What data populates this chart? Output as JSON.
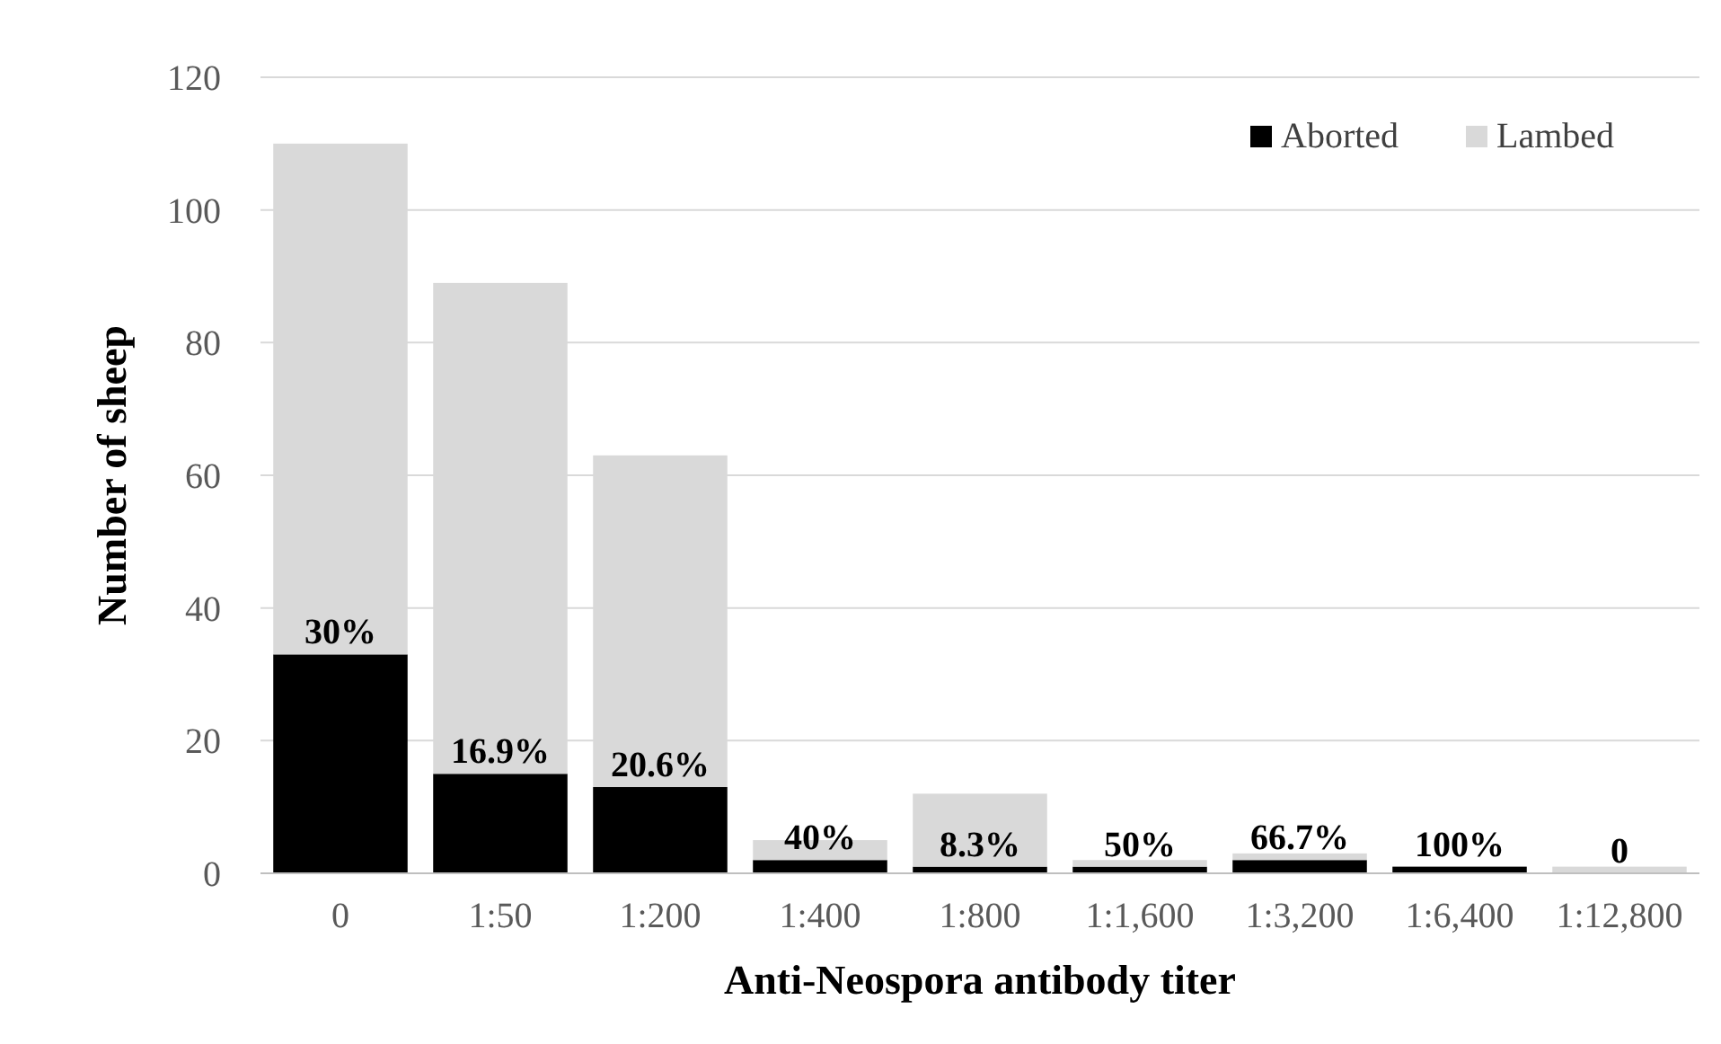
{
  "chart_data": {
    "type": "bar",
    "stacked": true,
    "xlabel": "Anti-Neospora antibody titer",
    "ylabel": "Number of sheep",
    "categories": [
      "0",
      "1:50",
      "1:200",
      "1:400",
      "1:800",
      "1:1,600",
      "1:3,200",
      "1:6,400",
      "1:12,800"
    ],
    "series": [
      {
        "name": "Aborted",
        "color": "#000000",
        "values": [
          33,
          15,
          13,
          2,
          1,
          1,
          2,
          1,
          0
        ]
      },
      {
        "name": "Lambed",
        "color": "#d9d9d9",
        "values": [
          77,
          74,
          50,
          3,
          11,
          1,
          1,
          0,
          1
        ]
      }
    ],
    "annotations": [
      {
        "text": "30%",
        "x": "0",
        "y": 33
      },
      {
        "text": "16.9%",
        "x": "1:50",
        "y": 15
      },
      {
        "text": "20.6%",
        "x": "1:200",
        "y": 13
      },
      {
        "text": "40%",
        "x": "1:400",
        "y": 2
      },
      {
        "text": "8.3%",
        "x": "1:800",
        "y": 1
      },
      {
        "text": "50%",
        "x": "1:1,600",
        "y": 1
      },
      {
        "text": "66.7%",
        "x": "1:3,200",
        "y": 2
      },
      {
        "text": "100%",
        "x": "1:6,400",
        "y": 1
      },
      {
        "text": "0",
        "x": "1:12,800",
        "y": 0
      }
    ],
    "ylim": [
      0,
      120
    ],
    "yticks": [
      0,
      20,
      40,
      60,
      80,
      100,
      120
    ],
    "grid": "y",
    "legend": "top right"
  }
}
